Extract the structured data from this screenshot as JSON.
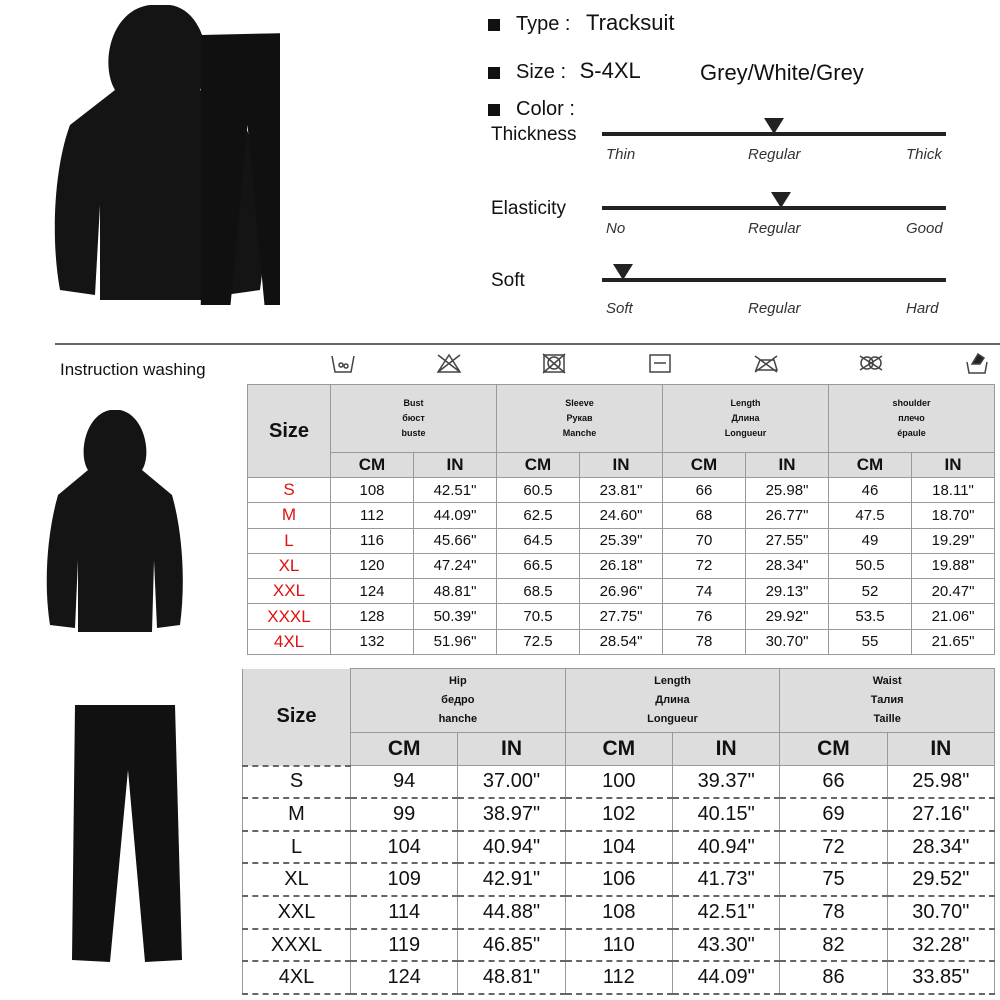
{
  "specs": {
    "type_label": "Type :",
    "type_value": "Tracksuit",
    "size_label": "Size :",
    "size_value": "S-4XL",
    "color_label": "Color :",
    "color_value": "Grey/White/Grey"
  },
  "scales": [
    {
      "label": "Thickness",
      "ticks": [
        "Thin",
        "Regular",
        "Thick"
      ],
      "level": 0.5
    },
    {
      "label": "Elasticity",
      "ticks": [
        "No",
        "Regular",
        "Good"
      ],
      "level": 0.52
    },
    {
      "label": "Soft",
      "ticks": [
        "Soft",
        "Regular",
        "Hard"
      ],
      "level": 0.06
    }
  ],
  "washing": {
    "title": "Instruction washing",
    "icons": [
      "wash-30-icon",
      "no-bleach-icon",
      "no-tumble-dry-icon",
      "dry-flat-icon",
      "iron-low-icon",
      "no-dry-clean-icon",
      "hand-wash-icon"
    ]
  },
  "top_table": {
    "size_header": "Size",
    "groups": [
      [
        "Bust",
        "бюст",
        "buste"
      ],
      [
        "Sleeve",
        "Рукав",
        "Manche"
      ],
      [
        "Length",
        "Длина",
        "Longueur"
      ],
      [
        "shoulder",
        "плечо",
        "épaule"
      ]
    ],
    "units": [
      "CM",
      "IN"
    ],
    "rows": [
      [
        "S",
        "108",
        "42.51\"",
        "60.5",
        "23.81\"",
        "66",
        "25.98\"",
        "46",
        "18.11\""
      ],
      [
        "M",
        "112",
        "44.09\"",
        "62.5",
        "24.60\"",
        "68",
        "26.77\"",
        "47.5",
        "18.70\""
      ],
      [
        "L",
        "116",
        "45.66\"",
        "64.5",
        "25.39\"",
        "70",
        "27.55\"",
        "49",
        "19.29\""
      ],
      [
        "XL",
        "120",
        "47.24\"",
        "66.5",
        "26.18\"",
        "72",
        "28.34\"",
        "50.5",
        "19.88\""
      ],
      [
        "XXL",
        "124",
        "48.81\"",
        "68.5",
        "26.96\"",
        "74",
        "29.13\"",
        "52",
        "20.47\""
      ],
      [
        "XXXL",
        "128",
        "50.39\"",
        "70.5",
        "27.75\"",
        "76",
        "29.92\"",
        "53.5",
        "21.06\""
      ],
      [
        "4XL",
        "132",
        "51.96\"",
        "72.5",
        "28.54\"",
        "78",
        "30.70\"",
        "55",
        "21.65\""
      ]
    ],
    "size_color": "#e01010"
  },
  "bottom_table": {
    "size_header": "Size",
    "groups": [
      [
        "Hip",
        "бедро",
        "hanche"
      ],
      [
        "Length",
        "Длина",
        "Longueur"
      ],
      [
        "Waist",
        "Талия",
        "Taille"
      ]
    ],
    "units": [
      "CM",
      "IN"
    ],
    "rows": [
      [
        "S",
        "94",
        "37.00\"",
        "100",
        "39.37\"",
        "66",
        "25.98\""
      ],
      [
        "M",
        "99",
        "38.97\"",
        "102",
        "40.15\"",
        "69",
        "27.16\""
      ],
      [
        "L",
        "104",
        "40.94\"",
        "104",
        "40.94\"",
        "72",
        "28.34\""
      ],
      [
        "XL",
        "109",
        "42.91\"",
        "106",
        "41.73\"",
        "75",
        "29.52\""
      ],
      [
        "XXL",
        "114",
        "44.88\"",
        "108",
        "42.51\"",
        "78",
        "30.70\""
      ],
      [
        "XXXL",
        "119",
        "46.85\"",
        "110",
        "43.30\"",
        "82",
        "32.28\""
      ],
      [
        "4XL",
        "124",
        "48.81\"",
        "112",
        "44.09\"",
        "86",
        "33.85\""
      ]
    ]
  }
}
